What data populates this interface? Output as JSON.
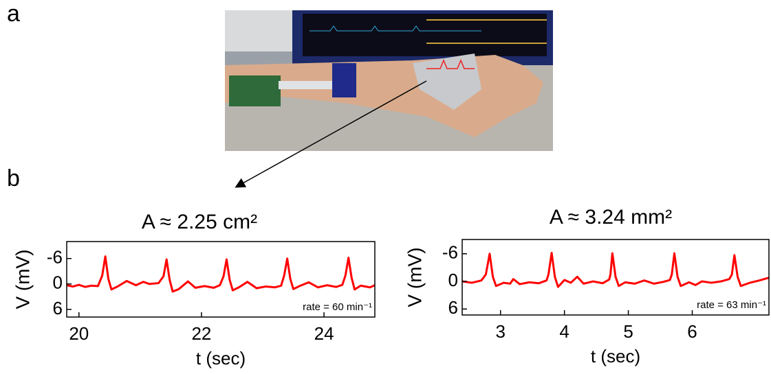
{
  "labels": {
    "a": "a",
    "b": "b"
  },
  "chart_data": [
    {
      "type": "line",
      "title": "A ≈ 2.25 cm²",
      "xlabel": "t (sec)",
      "ylabel": "V (mV)",
      "annotation": "rate = 60 min⁻¹",
      "color": "#ff0000",
      "x": [
        19.8,
        19.9,
        20.0,
        20.1,
        20.2,
        20.31,
        20.38,
        20.43,
        20.48,
        20.53,
        20.63,
        20.78,
        20.93,
        21.05,
        21.15,
        21.3,
        21.38,
        21.43,
        21.48,
        21.53,
        21.63,
        21.78,
        21.9,
        22.05,
        22.2,
        22.3,
        22.36,
        22.41,
        22.46,
        22.51,
        22.61,
        22.75,
        22.9,
        23.05,
        23.2,
        23.3,
        23.35,
        23.4,
        23.45,
        23.5,
        23.6,
        23.75,
        23.9,
        24.05,
        24.2,
        24.3,
        24.35,
        24.4,
        24.45,
        24.5,
        24.6,
        24.75,
        24.83
      ],
      "values": [
        0.3,
        0.6,
        0.2,
        0.7,
        0.4,
        0.5,
        -2.0,
        -6.5,
        -1.2,
        1.3,
        0.6,
        -0.7,
        0.3,
        -0.5,
        0.0,
        -0.2,
        -1.8,
        -5.8,
        -1.0,
        1.8,
        1.2,
        -0.6,
        0.9,
        0.5,
        0.9,
        0.3,
        -1.8,
        -5.8,
        -1.0,
        1.5,
        0.8,
        -0.5,
        1.0,
        0.6,
        0.8,
        0.4,
        -2.0,
        -6.0,
        -1.2,
        1.2,
        0.5,
        -0.4,
        0.8,
        0.3,
        0.7,
        0.2,
        -2.0,
        -6.2,
        -1.5,
        1.3,
        0.4,
        0.8,
        0.3
      ],
      "xlim": [
        19.8,
        24.83
      ],
      "xticks": [
        20,
        22,
        24
      ],
      "ylim": [
        7.8,
        -10
      ],
      "yticks": [
        -6,
        0,
        6
      ]
    },
    {
      "type": "line",
      "title": "A ≈ 3.24 mm²",
      "xlabel": "t (sec)",
      "ylabel": "V (mV)",
      "annotation": "rate = 63 min⁻¹",
      "color": "#ff0000",
      "x": [
        2.4,
        2.55,
        2.7,
        2.77,
        2.83,
        2.88,
        2.93,
        3.05,
        3.15,
        3.2,
        3.3,
        3.45,
        3.6,
        3.72,
        3.75,
        3.8,
        3.85,
        3.9,
        4.0,
        4.1,
        4.2,
        4.3,
        4.45,
        4.6,
        4.7,
        4.72,
        4.75,
        4.8,
        4.85,
        4.95,
        5.1,
        5.25,
        5.4,
        5.55,
        5.65,
        5.68,
        5.72,
        5.77,
        5.82,
        5.95,
        6.05,
        6.15,
        6.3,
        6.45,
        6.58,
        6.62,
        6.66,
        6.71,
        6.76,
        6.9,
        7.05,
        7.2
      ],
      "values": [
        0.0,
        0.3,
        -0.2,
        -1.5,
        -6.0,
        -1.0,
        1.0,
        0.3,
        0.5,
        -0.5,
        0.6,
        0.2,
        0.4,
        -0.2,
        -1.5,
        -6.2,
        -1.0,
        1.2,
        -0.3,
        0.3,
        -1.0,
        0.5,
        0.0,
        0.4,
        -0.4,
        -1.5,
        -6.1,
        -1.0,
        1.0,
        0.2,
        0.5,
        -0.2,
        0.5,
        0.1,
        -0.3,
        -1.5,
        -6.1,
        -1.0,
        1.0,
        0.2,
        0.8,
        0.0,
        0.3,
        0.0,
        -0.5,
        -1.5,
        -5.7,
        -1.0,
        1.0,
        0.3,
        -0.2,
        -0.8
      ],
      "xlim": [
        2.4,
        7.2
      ],
      "xticks": [
        3,
        4,
        5,
        6
      ],
      "ylim": [
        7.3,
        -9.1
      ],
      "yticks": [
        -6,
        0,
        6
      ]
    }
  ]
}
